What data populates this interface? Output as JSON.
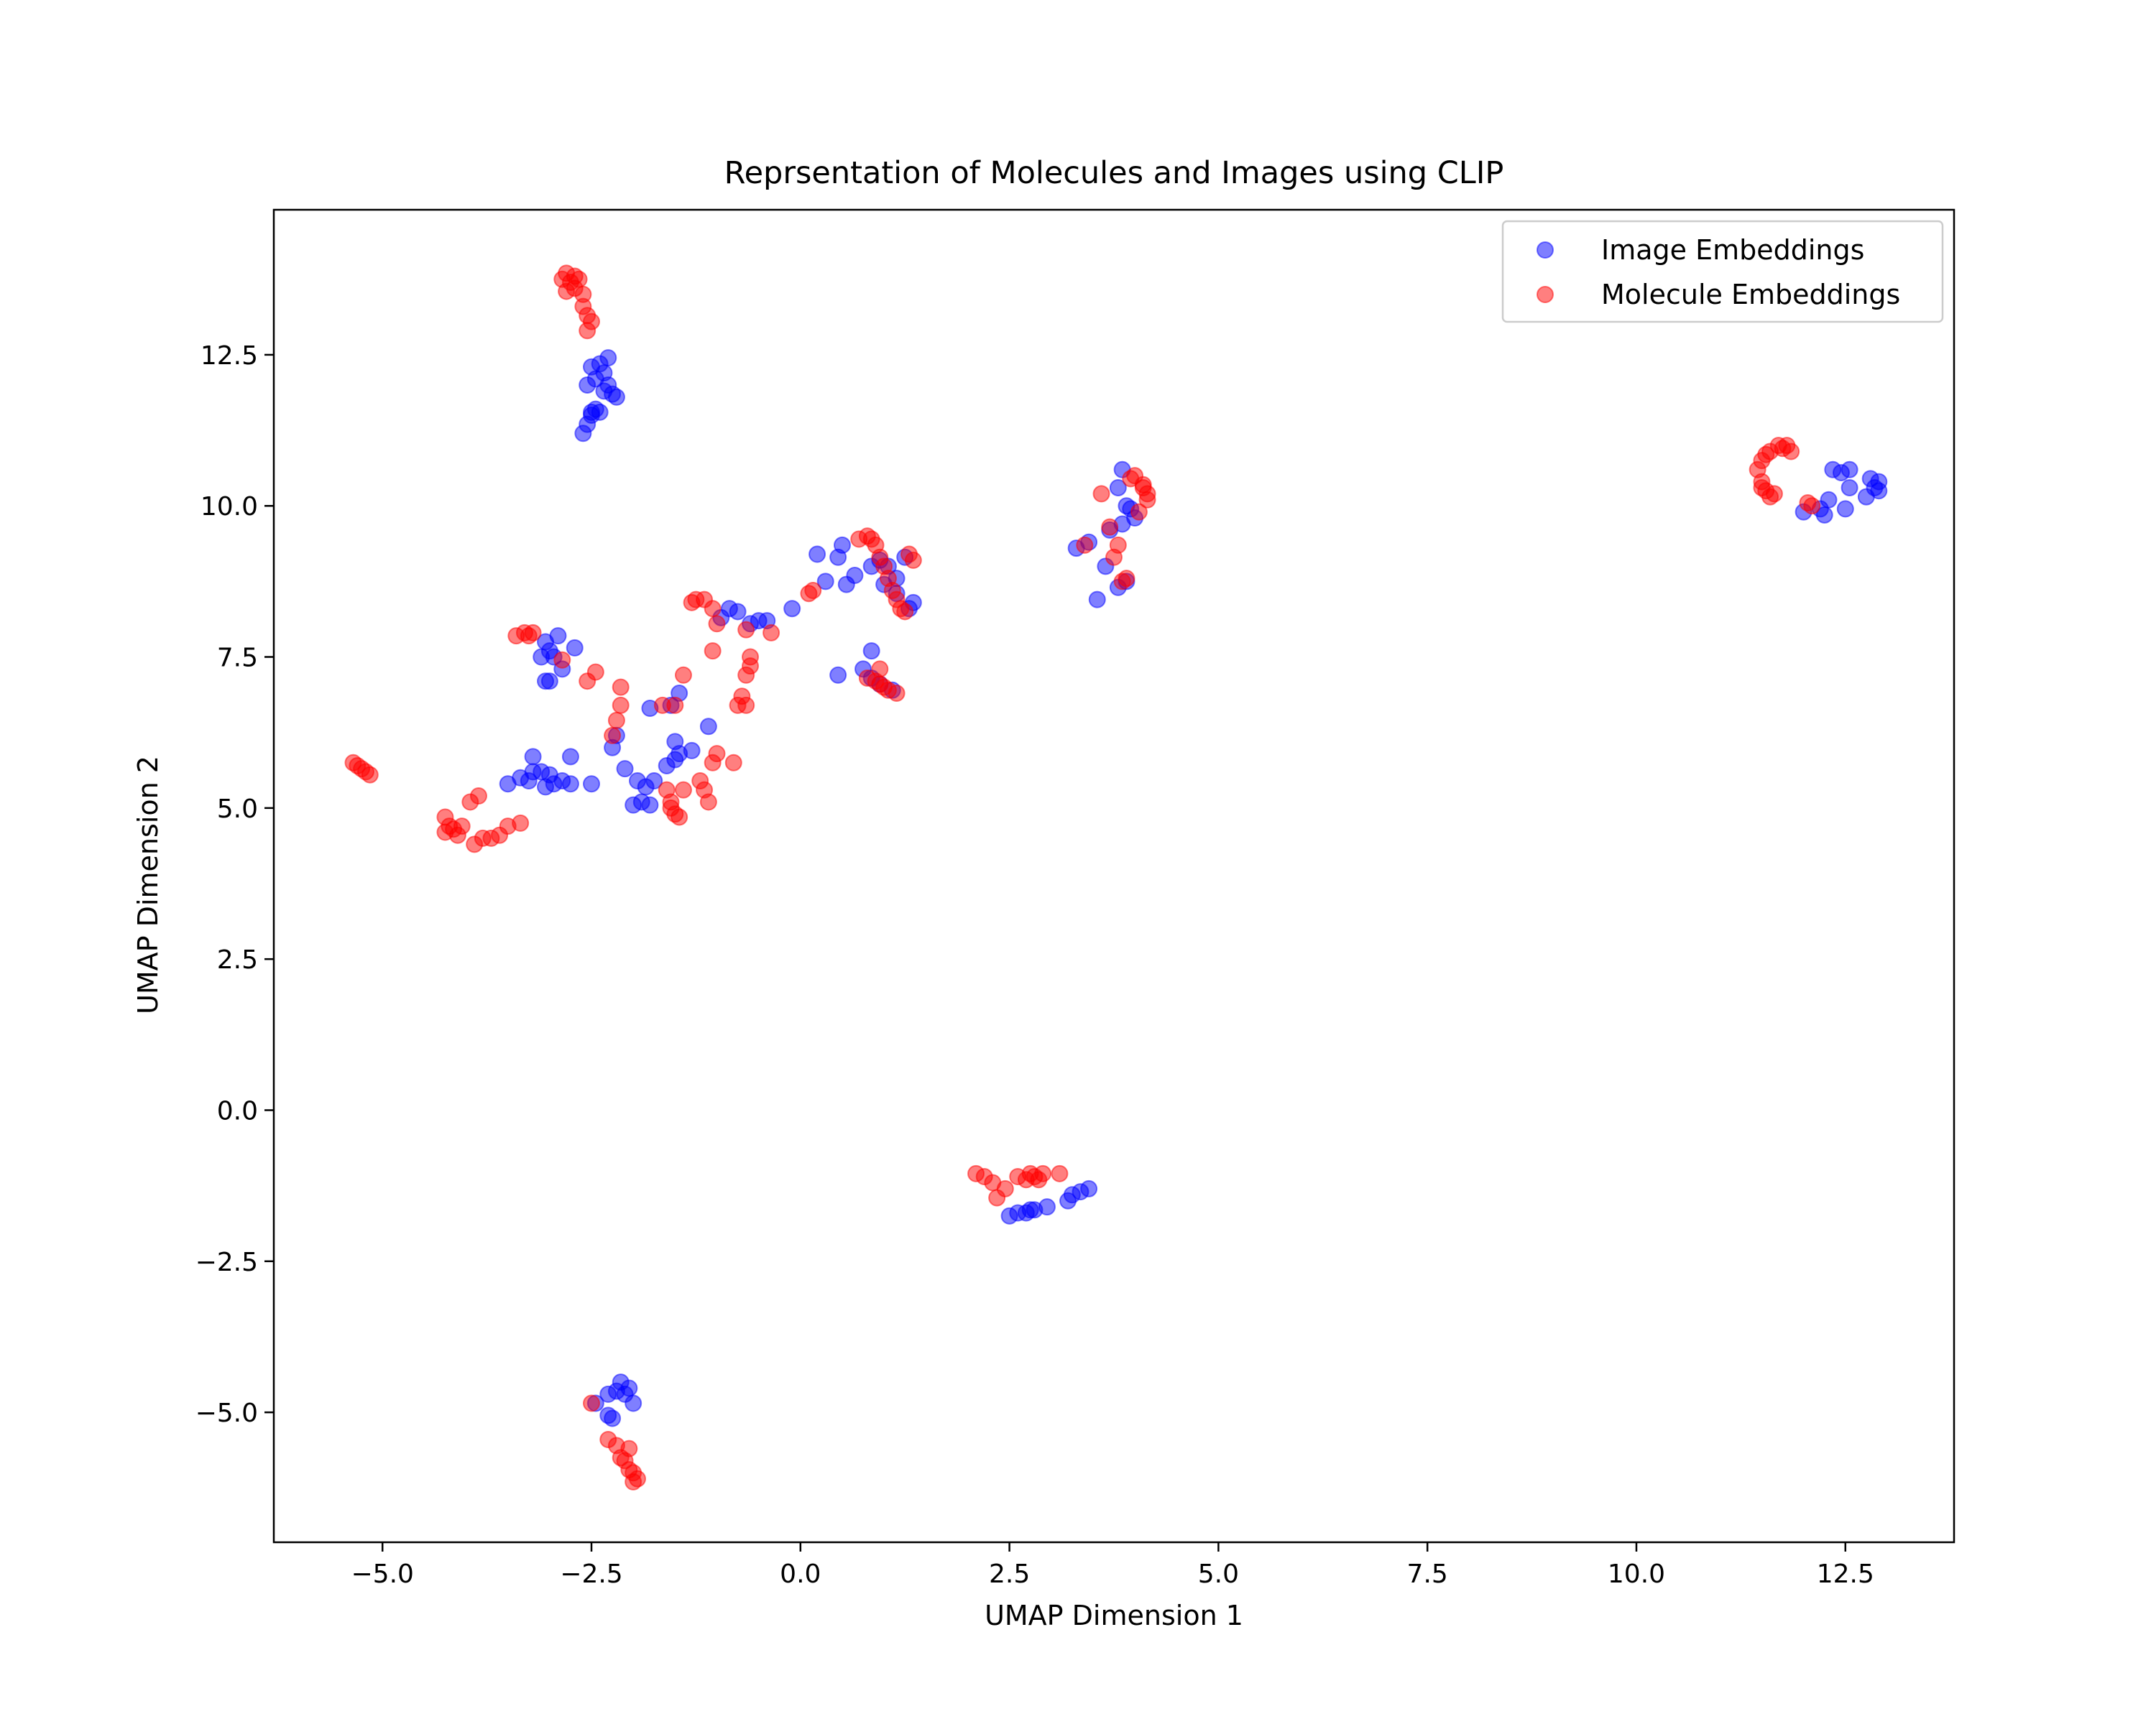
{
  "chart_data": {
    "type": "scatter",
    "title": "Reprsentation of Molecules and Images using CLIP",
    "xlabel": "UMAP Dimension 1",
    "ylabel": "UMAP Dimension 2",
    "xlim": [
      -6.3,
      13.8
    ],
    "ylim": [
      -7.15,
      14.9
    ],
    "xticks": [
      -5.0,
      -2.5,
      0.0,
      2.5,
      5.0,
      7.5,
      10.0,
      12.5
    ],
    "xtick_labels": [
      "−5.0",
      "−2.5",
      "0.0",
      "2.5",
      "5.0",
      "7.5",
      "10.0",
      "12.5"
    ],
    "yticks": [
      -5.0,
      -2.5,
      0.0,
      2.5,
      5.0,
      7.5,
      10.0,
      12.5
    ],
    "ytick_labels": [
      "−5.0",
      "−2.5",
      "0.0",
      "2.5",
      "5.0",
      "7.5",
      "10.0",
      "12.5"
    ],
    "grid": false,
    "legend_position": "top-right",
    "series": [
      {
        "name": "Image Embeddings",
        "color": "#0000ff",
        "points": [
          [
            -2.6,
            11.2
          ],
          [
            -2.55,
            11.35
          ],
          [
            -2.5,
            11.5
          ],
          [
            -2.45,
            11.6
          ],
          [
            -2.4,
            11.55
          ],
          [
            -2.55,
            12.0
          ],
          [
            -2.45,
            12.1
          ],
          [
            -2.35,
            12.2
          ],
          [
            -2.3,
            12.45
          ],
          [
            -2.4,
            12.35
          ],
          [
            -2.5,
            12.3
          ],
          [
            -2.35,
            11.9
          ],
          [
            -2.25,
            11.85
          ],
          [
            -2.2,
            11.8
          ],
          [
            -2.3,
            12.0
          ],
          [
            -2.5,
            11.55
          ],
          [
            -3.5,
            5.4
          ],
          [
            -3.35,
            5.5
          ],
          [
            -3.2,
            5.6
          ],
          [
            -3.1,
            5.6
          ],
          [
            -3.0,
            5.55
          ],
          [
            -2.95,
            5.4
          ],
          [
            -2.85,
            5.45
          ],
          [
            -2.75,
            5.4
          ],
          [
            -3.05,
            5.35
          ],
          [
            -3.2,
            5.85
          ],
          [
            -2.75,
            5.85
          ],
          [
            -2.5,
            5.4
          ],
          [
            -3.25,
            5.45
          ],
          [
            -3.05,
            7.75
          ],
          [
            -3.0,
            7.6
          ],
          [
            -2.9,
            7.85
          ],
          [
            -3.1,
            7.5
          ],
          [
            -3.0,
            7.1
          ],
          [
            -2.85,
            7.3
          ],
          [
            -2.7,
            7.65
          ],
          [
            -3.05,
            7.1
          ],
          [
            -2.95,
            7.5
          ],
          [
            -2.25,
            6.0
          ],
          [
            -2.2,
            6.2
          ],
          [
            -2.1,
            5.65
          ],
          [
            -1.95,
            5.45
          ],
          [
            -1.85,
            5.35
          ],
          [
            -1.9,
            5.1
          ],
          [
            -1.8,
            5.05
          ],
          [
            -2.0,
            5.05
          ],
          [
            -1.75,
            5.45
          ],
          [
            -1.6,
            5.7
          ],
          [
            -1.5,
            5.8
          ],
          [
            -1.45,
            5.9
          ],
          [
            -1.3,
            5.95
          ],
          [
            -1.5,
            6.1
          ],
          [
            -1.55,
            6.7
          ],
          [
            -1.45,
            6.9
          ],
          [
            -1.8,
            6.65
          ],
          [
            -1.1,
            6.35
          ],
          [
            -0.95,
            8.15
          ],
          [
            -0.85,
            8.3
          ],
          [
            -0.75,
            8.25
          ],
          [
            -0.6,
            8.05
          ],
          [
            -0.5,
            8.1
          ],
          [
            -0.4,
            8.1
          ],
          [
            -0.1,
            8.3
          ],
          [
            0.2,
            9.2
          ],
          [
            0.3,
            8.75
          ],
          [
            0.45,
            9.15
          ],
          [
            0.5,
            9.35
          ],
          [
            0.55,
            8.7
          ],
          [
            0.65,
            8.85
          ],
          [
            0.85,
            9.0
          ],
          [
            0.95,
            9.1
          ],
          [
            1.05,
            9.0
          ],
          [
            1.15,
            8.8
          ],
          [
            1.25,
            9.15
          ],
          [
            1.3,
            8.3
          ],
          [
            1.35,
            8.4
          ],
          [
            0.75,
            7.3
          ],
          [
            0.85,
            7.15
          ],
          [
            0.85,
            7.6
          ],
          [
            0.95,
            7.05
          ],
          [
            1.1,
            6.95
          ],
          [
            0.45,
            7.2
          ],
          [
            1.0,
            8.7
          ],
          [
            1.15,
            8.55
          ],
          [
            3.3,
            9.3
          ],
          [
            3.45,
            9.4
          ],
          [
            3.55,
            8.45
          ],
          [
            3.65,
            9.0
          ],
          [
            3.7,
            9.6
          ],
          [
            3.8,
            10.3
          ],
          [
            3.85,
            10.6
          ],
          [
            3.9,
            10.0
          ],
          [
            3.95,
            9.95
          ],
          [
            3.85,
            9.7
          ],
          [
            3.8,
            8.65
          ],
          [
            3.9,
            8.75
          ],
          [
            4.0,
            9.8
          ],
          [
            2.5,
            -1.75
          ],
          [
            2.6,
            -1.7
          ],
          [
            2.7,
            -1.7
          ],
          [
            2.8,
            -1.65
          ],
          [
            2.95,
            -1.6
          ],
          [
            3.2,
            -1.5
          ],
          [
            3.25,
            -1.4
          ],
          [
            3.35,
            -1.35
          ],
          [
            3.45,
            -1.3
          ],
          [
            2.75,
            -1.65
          ],
          [
            -2.45,
            -4.85
          ],
          [
            -2.3,
            -4.7
          ],
          [
            -2.25,
            -5.1
          ],
          [
            -2.2,
            -4.65
          ],
          [
            -2.15,
            -4.5
          ],
          [
            -2.1,
            -4.7
          ],
          [
            -2.05,
            -4.6
          ],
          [
            -2.0,
            -4.85
          ],
          [
            -2.3,
            -5.05
          ],
          [
            12.0,
            9.9
          ],
          [
            12.2,
            9.95
          ],
          [
            12.25,
            9.85
          ],
          [
            12.3,
            10.1
          ],
          [
            12.35,
            10.6
          ],
          [
            12.45,
            10.55
          ],
          [
            12.5,
            9.95
          ],
          [
            12.55,
            10.3
          ],
          [
            12.55,
            10.6
          ],
          [
            12.75,
            10.15
          ],
          [
            12.8,
            10.45
          ],
          [
            12.85,
            10.3
          ],
          [
            12.9,
            10.4
          ],
          [
            12.9,
            10.25
          ]
        ]
      },
      {
        "name": "Molecule Embeddings",
        "color": "#ff0000",
        "points": [
          [
            -2.85,
            13.75
          ],
          [
            -2.8,
            13.85
          ],
          [
            -2.75,
            13.7
          ],
          [
            -2.7,
            13.8
          ],
          [
            -2.8,
            13.55
          ],
          [
            -2.65,
            13.75
          ],
          [
            -2.6,
            13.5
          ],
          [
            -2.6,
            13.3
          ],
          [
            -2.55,
            13.15
          ],
          [
            -2.5,
            13.05
          ],
          [
            -2.55,
            12.9
          ],
          [
            -2.7,
            13.6
          ],
          [
            -5.35,
            5.75
          ],
          [
            -5.3,
            5.7
          ],
          [
            -5.25,
            5.65
          ],
          [
            -5.2,
            5.6
          ],
          [
            -5.15,
            5.55
          ],
          [
            -4.25,
            4.85
          ],
          [
            -4.2,
            4.7
          ],
          [
            -4.25,
            4.6
          ],
          [
            -4.15,
            4.65
          ],
          [
            -4.1,
            4.55
          ],
          [
            -4.05,
            4.7
          ],
          [
            -3.9,
            4.4
          ],
          [
            -3.8,
            4.5
          ],
          [
            -3.7,
            4.5
          ],
          [
            -3.6,
            4.55
          ],
          [
            -3.5,
            4.7
          ],
          [
            -3.35,
            4.75
          ],
          [
            -3.95,
            5.1
          ],
          [
            -3.85,
            5.2
          ],
          [
            -3.4,
            7.85
          ],
          [
            -3.3,
            7.9
          ],
          [
            -3.25,
            7.85
          ],
          [
            -3.2,
            7.9
          ],
          [
            -2.85,
            7.45
          ],
          [
            -2.55,
            7.1
          ],
          [
            -2.45,
            7.25
          ],
          [
            -2.25,
            6.2
          ],
          [
            -2.2,
            6.45
          ],
          [
            -2.15,
            6.7
          ],
          [
            -2.15,
            7.0
          ],
          [
            -1.65,
            6.7
          ],
          [
            -1.5,
            6.7
          ],
          [
            -1.4,
            7.2
          ],
          [
            -1.6,
            5.3
          ],
          [
            -1.55,
            5.1
          ],
          [
            -1.5,
            4.9
          ],
          [
            -1.45,
            4.85
          ],
          [
            -1.4,
            5.3
          ],
          [
            -1.55,
            5.0
          ],
          [
            -1.2,
            5.45
          ],
          [
            -1.15,
            5.3
          ],
          [
            -1.1,
            5.1
          ],
          [
            -1.05,
            5.75
          ],
          [
            -1.0,
            5.9
          ],
          [
            -0.8,
            5.75
          ],
          [
            -1.3,
            8.4
          ],
          [
            -1.25,
            8.45
          ],
          [
            -1.15,
            8.45
          ],
          [
            -1.05,
            8.3
          ],
          [
            -1.0,
            8.05
          ],
          [
            -1.05,
            7.6
          ],
          [
            -0.75,
            6.7
          ],
          [
            -0.7,
            6.85
          ],
          [
            -0.65,
            6.7
          ],
          [
            -0.65,
            7.2
          ],
          [
            -0.6,
            7.35
          ],
          [
            -0.6,
            7.5
          ],
          [
            -0.65,
            7.95
          ],
          [
            -0.35,
            7.9
          ],
          [
            0.1,
            8.55
          ],
          [
            0.15,
            8.6
          ],
          [
            0.7,
            9.45
          ],
          [
            0.8,
            9.5
          ],
          [
            0.85,
            9.45
          ],
          [
            0.9,
            9.35
          ],
          [
            0.95,
            9.15
          ],
          [
            1.0,
            9.0
          ],
          [
            1.05,
            8.8
          ],
          [
            1.1,
            8.6
          ],
          [
            1.15,
            8.45
          ],
          [
            1.2,
            8.3
          ],
          [
            1.25,
            8.25
          ],
          [
            1.3,
            9.2
          ],
          [
            1.35,
            9.1
          ],
          [
            0.8,
            7.15
          ],
          [
            0.9,
            7.1
          ],
          [
            0.95,
            7.05
          ],
          [
            1.0,
            7.0
          ],
          [
            1.05,
            6.95
          ],
          [
            0.95,
            7.3
          ],
          [
            1.15,
            6.9
          ],
          [
            3.4,
            9.35
          ],
          [
            3.6,
            10.2
          ],
          [
            3.7,
            9.65
          ],
          [
            3.75,
            9.15
          ],
          [
            3.8,
            9.35
          ],
          [
            3.85,
            8.75
          ],
          [
            3.9,
            8.8
          ],
          [
            3.95,
            10.45
          ],
          [
            4.0,
            10.5
          ],
          [
            4.05,
            9.9
          ],
          [
            4.1,
            10.35
          ],
          [
            4.15,
            10.2
          ],
          [
            4.15,
            10.1
          ],
          [
            4.1,
            10.3
          ],
          [
            2.1,
            -1.05
          ],
          [
            2.2,
            -1.1
          ],
          [
            2.3,
            -1.2
          ],
          [
            2.35,
            -1.45
          ],
          [
            2.45,
            -1.3
          ],
          [
            2.6,
            -1.1
          ],
          [
            2.7,
            -1.15
          ],
          [
            2.75,
            -1.05
          ],
          [
            2.8,
            -1.1
          ],
          [
            2.9,
            -1.05
          ],
          [
            3.1,
            -1.05
          ],
          [
            2.85,
            -1.15
          ],
          [
            -2.5,
            -4.85
          ],
          [
            -2.3,
            -5.45
          ],
          [
            -2.2,
            -5.55
          ],
          [
            -2.15,
            -5.75
          ],
          [
            -2.1,
            -5.8
          ],
          [
            -2.05,
            -5.6
          ],
          [
            -2.0,
            -6.0
          ],
          [
            -1.95,
            -6.1
          ],
          [
            -2.05,
            -5.95
          ],
          [
            -2.0,
            -6.15
          ],
          [
            11.45,
            10.6
          ],
          [
            11.5,
            10.75
          ],
          [
            11.5,
            10.4
          ],
          [
            11.55,
            10.25
          ],
          [
            11.6,
            10.15
          ],
          [
            11.55,
            10.85
          ],
          [
            11.6,
            10.9
          ],
          [
            11.7,
            11.0
          ],
          [
            11.75,
            10.95
          ],
          [
            11.8,
            11.0
          ],
          [
            11.85,
            10.9
          ],
          [
            11.5,
            10.3
          ],
          [
            11.65,
            10.2
          ],
          [
            12.05,
            10.05
          ],
          [
            12.1,
            10.0
          ]
        ]
      }
    ]
  }
}
